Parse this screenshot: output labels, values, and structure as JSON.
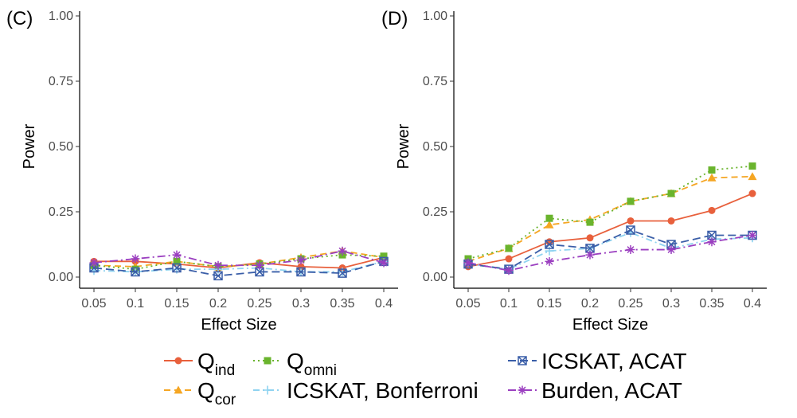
{
  "legend": [
    {
      "key": "qind",
      "main": "Q",
      "sub": "ind",
      "color": "#e8603c",
      "marker": "circle",
      "dash": ""
    },
    {
      "key": "qcor",
      "main": "Q",
      "sub": "cor",
      "color": "#f5a623",
      "marker": "triangle",
      "dash": "8,5"
    },
    {
      "key": "qomni",
      "main": "Q",
      "sub": "omni",
      "color": "#6ab42d",
      "marker": "square",
      "dash": "2,4"
    },
    {
      "key": "icskat_bonf",
      "main": "ICSKAT, Bonferroni",
      "sub": "",
      "color": "#8fd3f0",
      "marker": "plus",
      "dash": "8,4,2,4"
    },
    {
      "key": "icskat_acat",
      "main": "ICSKAT, ACAT",
      "sub": "",
      "color": "#3a5ea8",
      "marker": "squarex",
      "dash": "10,5"
    },
    {
      "key": "burden_acat",
      "main": "Burden, ACAT",
      "sub": "",
      "color": "#9b3fc0",
      "marker": "asterisk",
      "dash": "10,4,2,4"
    }
  ],
  "chart_data": [
    {
      "type": "line",
      "panel_label": "(C)",
      "xlabel": "Effect Size",
      "ylabel": "Power",
      "categories": [
        "0.05",
        "0.1",
        "0.15",
        "0.2",
        "0.25",
        "0.3",
        "0.35",
        "0.4"
      ],
      "ylim": [
        0,
        1
      ],
      "yticks": [
        "0.00",
        "0.25",
        "0.50",
        "0.75",
        "1.00"
      ],
      "series": [
        {
          "key": "qind",
          "values": [
            0.06,
            0.06,
            0.05,
            0.035,
            0.055,
            0.04,
            0.035,
            0.075
          ]
        },
        {
          "key": "qcor",
          "values": [
            0.045,
            0.04,
            0.06,
            0.04,
            0.05,
            0.075,
            0.1,
            0.075
          ]
        },
        {
          "key": "qomni",
          "values": [
            0.045,
            0.03,
            0.06,
            0.04,
            0.05,
            0.07,
            0.085,
            0.08
          ]
        },
        {
          "key": "icskat_bonf",
          "values": [
            0.025,
            0.02,
            0.03,
            0.03,
            0.035,
            0.02,
            0.02,
            0.06
          ]
        },
        {
          "key": "icskat_acat",
          "values": [
            0.035,
            0.02,
            0.035,
            0.005,
            0.02,
            0.02,
            0.015,
            0.06
          ]
        },
        {
          "key": "burden_acat",
          "values": [
            0.055,
            0.07,
            0.085,
            0.045,
            0.045,
            0.065,
            0.1,
            0.055
          ]
        }
      ]
    },
    {
      "type": "line",
      "panel_label": "(D)",
      "xlabel": "Effect Size",
      "ylabel": "Power",
      "categories": [
        "0.05",
        "0.1",
        "0.15",
        "0.2",
        "0.25",
        "0.3",
        "0.35",
        "0.4"
      ],
      "ylim": [
        0,
        1
      ],
      "yticks": [
        "0.00",
        "0.25",
        "0.50",
        "0.75",
        "1.00"
      ],
      "series": [
        {
          "key": "qind",
          "values": [
            0.04,
            0.07,
            0.135,
            0.15,
            0.215,
            0.215,
            0.255,
            0.32
          ]
        },
        {
          "key": "qcor",
          "values": [
            0.06,
            0.11,
            0.2,
            0.22,
            0.29,
            0.32,
            0.38,
            0.385
          ]
        },
        {
          "key": "qomni",
          "values": [
            0.07,
            0.11,
            0.225,
            0.21,
            0.29,
            0.32,
            0.41,
            0.425
          ]
        },
        {
          "key": "icskat_bonf",
          "values": [
            0.05,
            0.03,
            0.1,
            0.11,
            0.17,
            0.11,
            0.145,
            0.15
          ]
        },
        {
          "key": "icskat_acat",
          "values": [
            0.05,
            0.03,
            0.125,
            0.11,
            0.18,
            0.125,
            0.16,
            0.16
          ]
        },
        {
          "key": "burden_acat",
          "values": [
            0.055,
            0.025,
            0.06,
            0.085,
            0.105,
            0.105,
            0.135,
            0.16
          ]
        }
      ]
    }
  ]
}
